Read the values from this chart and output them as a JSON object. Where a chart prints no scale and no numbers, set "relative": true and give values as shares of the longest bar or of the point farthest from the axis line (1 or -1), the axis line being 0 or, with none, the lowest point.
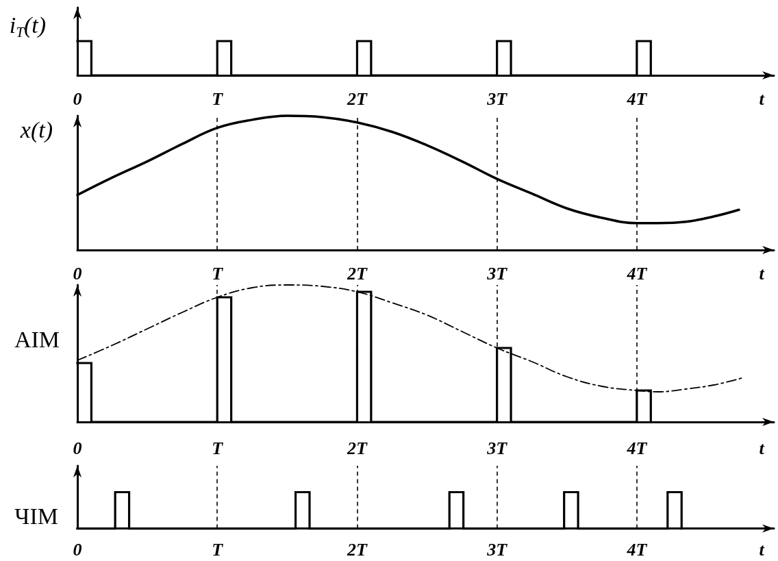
{
  "chart_data": [
    {
      "type": "step",
      "ylabel": "i$_{T}$(t)",
      "xlabel": "t",
      "relative": true,
      "marker": "none",
      "color": "#000000",
      "x": [
        0,
        0.1,
        1,
        1.1,
        2,
        2.1,
        3,
        3.1,
        4,
        4.1
      ],
      "values": [
        1,
        0,
        1,
        0,
        1,
        0,
        1,
        0,
        1,
        0
      ],
      "xlim": [
        0,
        4.98
      ],
      "xticks": [
        {
          "value": 0,
          "label": "0"
        },
        {
          "value": 1,
          "label": "T"
        },
        {
          "value": 2,
          "label": "2T"
        },
        {
          "value": 3,
          "label": "3T"
        },
        {
          "value": 4,
          "label": "4T"
        }
      ]
    },
    {
      "type": "line",
      "ylabel": "x(t)",
      "xlabel": "t",
      "relative": true,
      "marker": "none",
      "color": "#000000",
      "x": [
        0,
        0.25,
        0.5,
        0.75,
        1,
        1.25,
        1.5,
        1.75,
        2,
        2.25,
        2.5,
        2.75,
        3,
        3.25,
        3.5,
        3.75,
        4,
        4.15,
        4.35,
        4.55,
        4.73
      ],
      "values": [
        0.41,
        0.54,
        0.66,
        0.79,
        0.91,
        0.97,
        1,
        0.99,
        0.95,
        0.88,
        0.78,
        0.66,
        0.53,
        0.42,
        0.31,
        0.24,
        0.2,
        0.2,
        0.21,
        0.25,
        0.3
      ],
      "xlim": [
        0,
        4.98
      ],
      "xticks": [
        {
          "value": 0,
          "label": "0"
        },
        {
          "value": 1,
          "label": "T"
        },
        {
          "value": 2,
          "label": "2T"
        },
        {
          "value": 3,
          "label": "3T"
        },
        {
          "value": 4,
          "label": "4T"
        }
      ],
      "ref_lines": [
        {
          "axis": "x",
          "value": 1,
          "line_style": "dashed",
          "color": "#000000"
        },
        {
          "axis": "x",
          "value": 2,
          "line_style": "dashed",
          "color": "#000000"
        },
        {
          "axis": "x",
          "value": 3,
          "line_style": "dashed",
          "color": "#000000"
        },
        {
          "axis": "x",
          "value": 4,
          "line_style": "dashed",
          "color": "#000000"
        }
      ]
    },
    {
      "type": "step",
      "ylabel": "АІМ",
      "xlabel": "t",
      "relative": true,
      "marker": "none",
      "series": [
        {
          "color": "#000000",
          "x": [
            0,
            0.1,
            1,
            1.1,
            2,
            2.1,
            3,
            3.1,
            4,
            4.1
          ],
          "values": [
            0.43,
            0,
            0.91,
            0,
            0.95,
            0,
            0.54,
            0,
            0.23,
            0
          ]
        },
        {
          "type": "line",
          "color": "#000000",
          "line_style": "dashed",
          "x": [
            0,
            0.25,
            0.5,
            0.75,
            1,
            1.25,
            1.5,
            1.75,
            2,
            2.25,
            2.5,
            2.75,
            3,
            3.25,
            3.5,
            3.75,
            4,
            4.15,
            4.35,
            4.55,
            4.75
          ],
          "values": [
            0.45,
            0.56,
            0.68,
            0.8,
            0.91,
            0.98,
            1,
            0.99,
            0.95,
            0.87,
            0.78,
            0.66,
            0.54,
            0.44,
            0.33,
            0.26,
            0.23,
            0.22,
            0.24,
            0.27,
            0.32
          ]
        }
      ],
      "xlim": [
        0,
        4.98
      ],
      "xticks": [
        {
          "value": 0,
          "label": "0"
        },
        {
          "value": 1,
          "label": "T"
        },
        {
          "value": 2,
          "label": "2T"
        },
        {
          "value": 3,
          "label": "3T"
        },
        {
          "value": 4,
          "label": "4T"
        }
      ],
      "ref_lines": [
        {
          "axis": "x",
          "value": 1,
          "line_style": "dashed",
          "color": "#000000"
        },
        {
          "axis": "x",
          "value": 2,
          "line_style": "dashed",
          "color": "#000000"
        },
        {
          "axis": "x",
          "value": 3,
          "line_style": "dashed",
          "color": "#000000"
        },
        {
          "axis": "x",
          "value": 4,
          "line_style": "dashed",
          "color": "#000000"
        }
      ]
    },
    {
      "type": "step",
      "ylabel": "ЧІМ",
      "xlabel": "t",
      "relative": true,
      "marker": "none",
      "color": "#000000",
      "x": [
        0,
        0.27,
        0.37,
        1.56,
        1.66,
        2.66,
        2.76,
        3.48,
        3.58,
        4.22,
        4.32
      ],
      "values": [
        0,
        1,
        0,
        1,
        0,
        1,
        0,
        1,
        0,
        1,
        0
      ],
      "xlim": [
        0,
        4.98
      ],
      "xticks": [
        {
          "value": 0,
          "label": "0"
        },
        {
          "value": 1,
          "label": "T"
        },
        {
          "value": 2,
          "label": "2T"
        },
        {
          "value": 3,
          "label": "3T"
        },
        {
          "value": 4,
          "label": "4T"
        }
      ],
      "ref_lines": [
        {
          "axis": "x",
          "value": 1,
          "line_style": "dashed",
          "color": "#000000"
        },
        {
          "axis": "x",
          "value": 2,
          "line_style": "dashed",
          "color": "#000000"
        },
        {
          "axis": "x",
          "value": 3,
          "line_style": "dashed",
          "color": "#000000"
        },
        {
          "axis": "x",
          "value": 4,
          "line_style": "dashed",
          "color": "#000000"
        }
      ]
    }
  ]
}
